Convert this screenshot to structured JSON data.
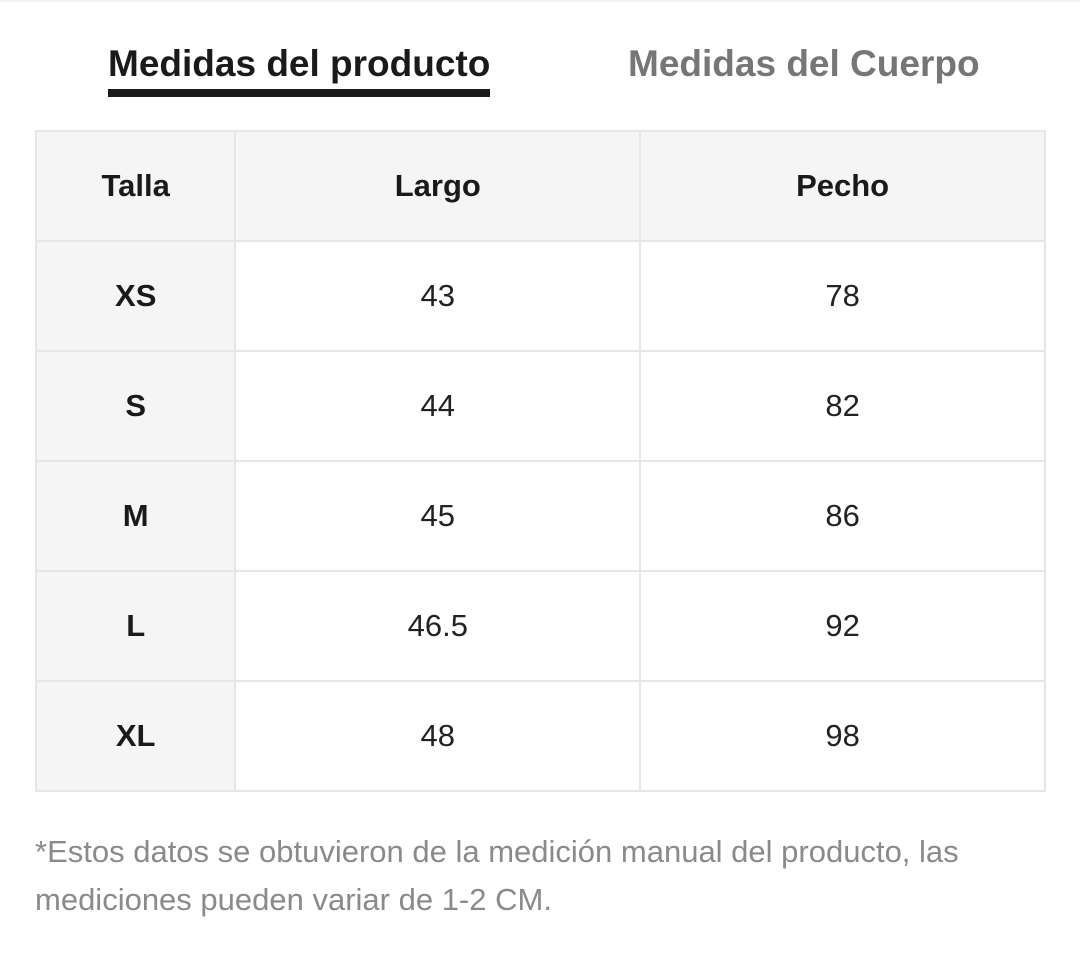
{
  "tabs": [
    {
      "label": "Medidas del producto",
      "active": true
    },
    {
      "label": "Medidas del Cuerpo",
      "active": false
    }
  ],
  "table": {
    "headers": [
      "Talla",
      "Largo",
      "Pecho"
    ],
    "rows": [
      {
        "size": "XS",
        "largo": "43",
        "pecho": "78"
      },
      {
        "size": "S",
        "largo": "44",
        "pecho": "82"
      },
      {
        "size": "M",
        "largo": "45",
        "pecho": "86"
      },
      {
        "size": "L",
        "largo": "46.5",
        "pecho": "92"
      },
      {
        "size": "XL",
        "largo": "48",
        "pecho": "98"
      }
    ]
  },
  "footnote": "*Estos datos se obtuvieron de la medición manual del producto, las mediciones pueden variar de 1-2 CM.",
  "colors": {
    "text": "#1a1a1a",
    "inactive_tab": "#767676",
    "header_bg": "#f5f5f5",
    "border": "#e6e6e6",
    "footnote": "#8a8a8a"
  }
}
